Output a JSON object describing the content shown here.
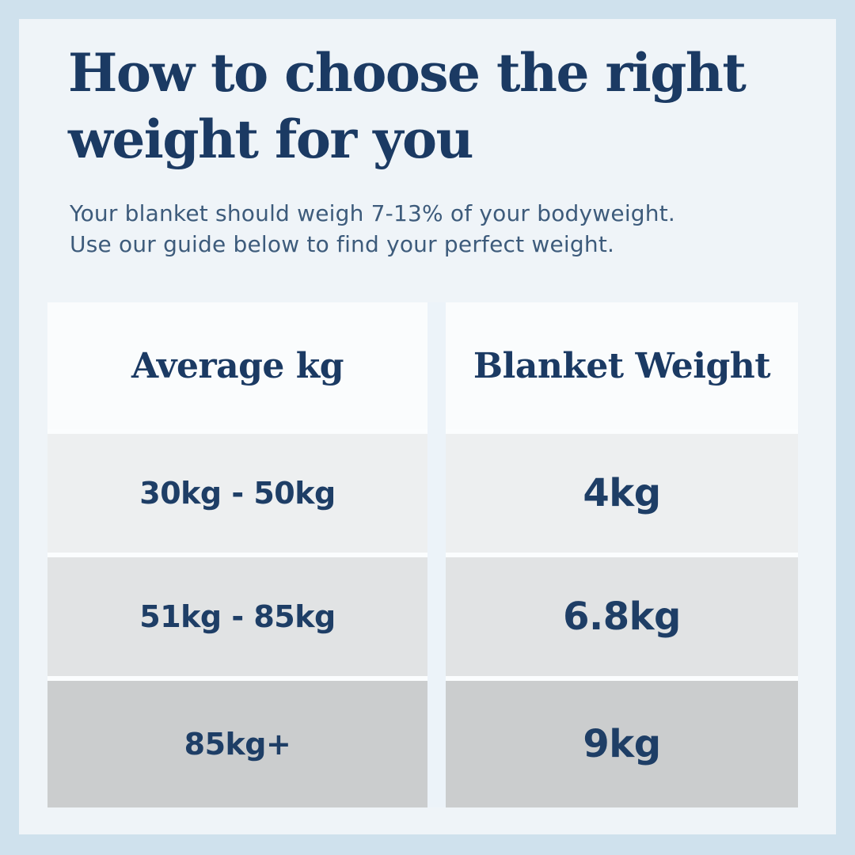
{
  "page": {
    "title_line1": "How to choose the right",
    "title_line2": "weight for you",
    "subtitle_line1": "Your blanket should weigh 7-13% of your bodyweight.",
    "subtitle_line2": "Use our guide below to find your perfect weight."
  },
  "table": {
    "headers": [
      "Average kg",
      "Blanket Weight"
    ],
    "rows": [
      {
        "range": "30kg - 50kg",
        "weight": "4kg"
      },
      {
        "range": "51kg - 85kg",
        "weight": "6.8kg"
      },
      {
        "range": "85kg+",
        "weight": "9kg"
      }
    ]
  },
  "colors": {
    "frame_background": "#cfe1ed",
    "card_background": "#eff4f8",
    "title_navy": "#1b3a63",
    "subtitle_text": "#3d5b7b",
    "cell_text_navy": "#1e3e66",
    "row_backgrounds": [
      "#fafcfd",
      "#edeff0",
      "#e1e3e4",
      "#cbcdce"
    ]
  }
}
